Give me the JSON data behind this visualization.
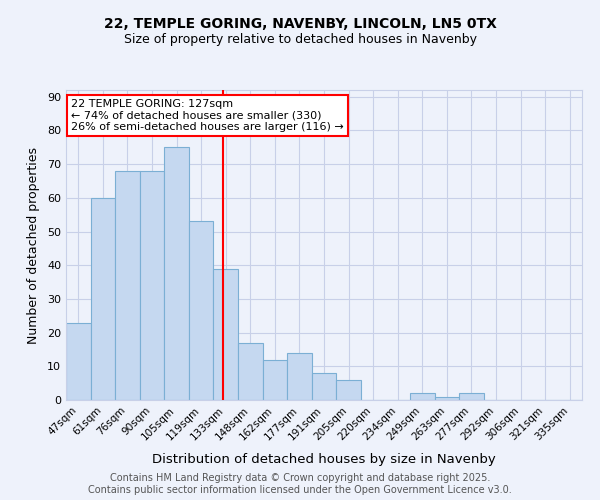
{
  "title1": "22, TEMPLE GORING, NAVENBY, LINCOLN, LN5 0TX",
  "title2": "Size of property relative to detached houses in Navenby",
  "xlabel": "Distribution of detached houses by size in Navenby",
  "ylabel": "Number of detached properties",
  "categories": [
    "47sqm",
    "61sqm",
    "76sqm",
    "90sqm",
    "105sqm",
    "119sqm",
    "133sqm",
    "148sqm",
    "162sqm",
    "177sqm",
    "191sqm",
    "205sqm",
    "220sqm",
    "234sqm",
    "249sqm",
    "263sqm",
    "277sqm",
    "292sqm",
    "306sqm",
    "321sqm",
    "335sqm"
  ],
  "values": [
    23,
    60,
    68,
    68,
    75,
    53,
    39,
    17,
    12,
    14,
    8,
    6,
    0,
    0,
    2,
    1,
    2,
    0,
    0,
    0,
    0
  ],
  "bar_color": "#c5d8f0",
  "bar_edge_color": "#7bafd4",
  "red_line_x": 5.87,
  "annotation_title": "22 TEMPLE GORING: 127sqm",
  "annotation_line1": "← 74% of detached houses are smaller (330)",
  "annotation_line2": "26% of semi-detached houses are larger (116) →",
  "ylim": [
    0,
    92
  ],
  "yticks": [
    0,
    10,
    20,
    30,
    40,
    50,
    60,
    70,
    80,
    90
  ],
  "footer1": "Contains HM Land Registry data © Crown copyright and database right 2025.",
  "footer2": "Contains public sector information licensed under the Open Government Licence v3.0.",
  "bg_color": "#eef2fb",
  "grid_color": "#c8d0e8",
  "title_fontsize": 10,
  "subtitle_fontsize": 9,
  "axis_label_fontsize": 9,
  "tick_fontsize": 7.5,
  "annotation_fontsize": 8,
  "footer_fontsize": 7
}
